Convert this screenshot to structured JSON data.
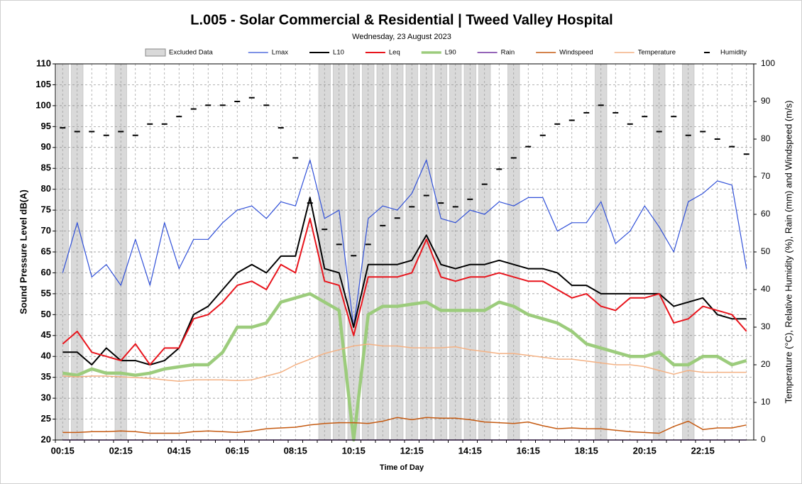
{
  "chart_data": {
    "type": "line",
    "title": "L.005 - Solar Commercial & Residential | Tweed Valley Hospital",
    "subtitle": "Wednesday, 23 August 2023",
    "x_label": "Time of Day",
    "y_label": "Sound Pressure Level dB(A)",
    "y2_label": "Temperature (°C), Relative Humidity (%), Rain (mm) and Windspeed (m/s)",
    "categories": [
      "00:15",
      null,
      null,
      null,
      "02:15",
      null,
      null,
      null,
      "04:15",
      null,
      null,
      null,
      "06:15",
      null,
      null,
      null,
      "08:15",
      null,
      null,
      null,
      "10:15",
      null,
      null,
      null,
      "12:15",
      null,
      null,
      null,
      "14:15",
      null,
      null,
      null,
      "16:15",
      null,
      null,
      null,
      "18:15",
      null,
      null,
      null,
      "20:15",
      null,
      null,
      null,
      "22:15",
      null,
      null,
      null
    ],
    "ylim": [
      20,
      110
    ],
    "yticks": [
      20,
      25,
      30,
      35,
      40,
      45,
      50,
      55,
      60,
      65,
      70,
      75,
      80,
      85,
      90,
      95,
      100,
      105,
      110
    ],
    "y2lim": [
      0,
      100
    ],
    "y2ticks": [
      0,
      10,
      20,
      30,
      40,
      50,
      60,
      70,
      80,
      90,
      100
    ],
    "grid": true,
    "excluded": {
      "name": "Excluded Data",
      "color": "#d9d9d9",
      "values": [
        true,
        true,
        false,
        false,
        true,
        false,
        false,
        false,
        false,
        false,
        false,
        false,
        false,
        false,
        false,
        false,
        false,
        false,
        true,
        true,
        true,
        true,
        true,
        true,
        true,
        true,
        true,
        true,
        true,
        true,
        false,
        true,
        false,
        false,
        false,
        false,
        false,
        true,
        false,
        false,
        false,
        true,
        false,
        true,
        false,
        false,
        false,
        false
      ]
    },
    "series": [
      {
        "name": "Lmax",
        "color": "#3050d8",
        "line_width": 1.2,
        "style": "line",
        "values": [
          60,
          72,
          59,
          62,
          57,
          68,
          57,
          72,
          61,
          68,
          68,
          72,
          75,
          76,
          73,
          77,
          76,
          87,
          73,
          75,
          47,
          73,
          76,
          75,
          79,
          87,
          73,
          72,
          75,
          74,
          77,
          76,
          78,
          78,
          70,
          72,
          72,
          77,
          67,
          70,
          76,
          71,
          65,
          77,
          79,
          82,
          81,
          61
        ]
      },
      {
        "name": "L10",
        "color": "#000000",
        "line_width": 2,
        "style": "line",
        "values": [
          41,
          41,
          38,
          42,
          39,
          39,
          38,
          39,
          42,
          50,
          52,
          56,
          60,
          62,
          60,
          64,
          64,
          78,
          61,
          60,
          47,
          62,
          62,
          62,
          63,
          69,
          62,
          61,
          62,
          62,
          63,
          62,
          61,
          61,
          60,
          57,
          57,
          55,
          55,
          55,
          55,
          55,
          52,
          53,
          54,
          50,
          49,
          49
        ]
      },
      {
        "name": "Leq",
        "color": "#e8141c",
        "line_width": 2,
        "style": "line",
        "values": [
          43,
          46,
          41,
          40,
          39,
          43,
          38,
          42,
          42,
          49,
          50,
          53,
          57,
          58,
          56,
          62,
          60,
          73,
          58,
          57,
          45,
          59,
          59,
          59,
          60,
          68,
          59,
          58,
          59,
          59,
          60,
          59,
          58,
          58,
          56,
          54,
          55,
          52,
          51,
          54,
          54,
          55,
          48,
          49,
          52,
          51,
          50,
          46
        ]
      },
      {
        "name": "L90",
        "color": "#9ccc7c",
        "line_width": 4.5,
        "style": "line",
        "values": [
          36,
          35.5,
          37,
          36,
          36,
          35.5,
          36,
          37,
          37.5,
          38,
          38,
          41,
          47,
          47,
          48,
          53,
          54,
          55,
          53,
          51,
          20,
          50,
          52,
          52,
          52.5,
          53,
          51,
          51,
          51,
          51,
          53,
          52,
          50,
          49,
          48,
          46,
          43,
          42,
          41,
          40,
          40,
          41,
          38,
          38,
          40,
          40,
          38,
          39
        ]
      },
      {
        "name": "Rain",
        "color": "#7030a0",
        "line_width": 1.5,
        "style": "line",
        "axis": "y2",
        "values": [
          0,
          0,
          0,
          0,
          0,
          0,
          0,
          0,
          0,
          0,
          0,
          0,
          0,
          0,
          0,
          0,
          0,
          0,
          0,
          0,
          0,
          0,
          0,
          0,
          0,
          0,
          0,
          0,
          0,
          0,
          0,
          0,
          0,
          0,
          0,
          0,
          0,
          0,
          0,
          0,
          0,
          0,
          0,
          0,
          0,
          0,
          0,
          0
        ]
      },
      {
        "name": "Windspeed",
        "color": "#c55a11",
        "line_width": 1.5,
        "style": "line",
        "axis": "y2",
        "values": [
          2,
          2,
          2.2,
          2.2,
          2.4,
          2.2,
          1.8,
          1.8,
          1.8,
          2.2,
          2.4,
          2.2,
          2,
          2.4,
          3,
          3.2,
          3.4,
          4,
          4.4,
          4.6,
          4.6,
          4.4,
          5,
          6,
          5.4,
          6,
          5.8,
          5.8,
          5.4,
          4.8,
          4.6,
          4.4,
          4.8,
          3.8,
          3,
          3.2,
          3,
          3,
          2.6,
          2.2,
          2,
          1.8,
          3.6,
          5,
          2.8,
          3.2,
          3.2,
          4
        ]
      },
      {
        "name": "Temperature",
        "color": "#f4b183",
        "line_width": 1.5,
        "style": "line",
        "axis": "y2",
        "values": [
          17,
          16.8,
          17,
          17,
          16.8,
          16.6,
          16.4,
          16,
          15.6,
          16,
          16,
          16,
          15.8,
          16,
          17,
          18,
          20,
          21.5,
          23,
          24,
          25,
          25.5,
          25,
          25,
          24.5,
          24.5,
          24.5,
          24.8,
          24,
          23.5,
          23,
          23,
          22.5,
          22,
          21.5,
          21.5,
          21,
          20.5,
          20,
          20,
          19.5,
          18.5,
          17.5,
          18.5,
          18,
          18,
          18,
          18
        ]
      },
      {
        "name": "Humidity",
        "color": "#000000",
        "line_width": 2,
        "style": "dash",
        "axis": "y2",
        "values": [
          83,
          82,
          82,
          81,
          82,
          81,
          84,
          84,
          86,
          88,
          89,
          89,
          90,
          91,
          89,
          83,
          75,
          63,
          56,
          52,
          49,
          52,
          57,
          59,
          62,
          65,
          63,
          62,
          64,
          68,
          72,
          75,
          78,
          81,
          84,
          85,
          87,
          89,
          87,
          84,
          86,
          82,
          86,
          81,
          82,
          80,
          78,
          76
        ]
      }
    ]
  }
}
